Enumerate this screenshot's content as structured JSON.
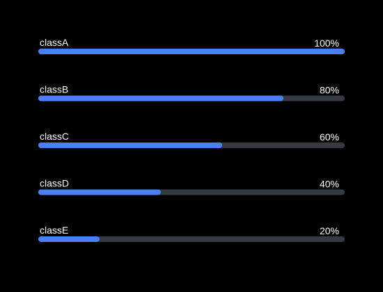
{
  "chart_data": {
    "type": "bar",
    "orientation": "horizontal",
    "categories": [
      "classA",
      "classB",
      "classC",
      "classD",
      "classE"
    ],
    "values": [
      100,
      80,
      60,
      40,
      20
    ],
    "value_labels": [
      "100%",
      "80%",
      "60%",
      "40%",
      "20%"
    ],
    "xlim": [
      0,
      100
    ],
    "color": "#4a80f5",
    "track_color": "#363a42"
  }
}
